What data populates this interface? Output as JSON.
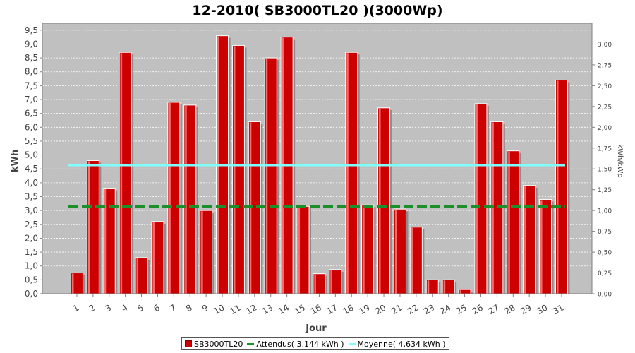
{
  "chart_data": {
    "type": "bar",
    "title": "12-2010( SB3000TL20 )(3000Wp)",
    "xlabel": "Jour",
    "ylabel": "kWh",
    "y2label": "kWh/kWp",
    "ylim": [
      0,
      9.75
    ],
    "y2lim": [
      0,
      3.25
    ],
    "yticks": [
      "0,0",
      "0,5",
      "1,0",
      "1,5",
      "2,0",
      "2,5",
      "3,0",
      "3,5",
      "4,0",
      "4,5",
      "5,0",
      "5,5",
      "6,0",
      "6,5",
      "7,0",
      "7,5",
      "8,0",
      "8,5",
      "9,0",
      "9,5"
    ],
    "y2ticks": [
      "0,00",
      "0,25",
      "0,50",
      "0,75",
      "1,00",
      "1,25",
      "1,50",
      "1,75",
      "2,00",
      "2,25",
      "2,50",
      "2,75",
      "3,00"
    ],
    "grid": true,
    "categories": [
      "1",
      "2",
      "3",
      "4",
      "5",
      "6",
      "7",
      "8",
      "9",
      "10",
      "11",
      "12",
      "13",
      "14",
      "15",
      "16",
      "17",
      "18",
      "19",
      "20",
      "21",
      "22",
      "23",
      "24",
      "25",
      "26",
      "27",
      "28",
      "29",
      "30",
      "31"
    ],
    "series": [
      {
        "name": "SB3000TL20",
        "color": "#cc0000",
        "values": [
          0.75,
          4.8,
          3.8,
          8.7,
          1.3,
          2.6,
          6.9,
          6.8,
          3.0,
          9.3,
          8.95,
          6.2,
          8.5,
          9.25,
          3.15,
          0.72,
          0.87,
          8.7,
          3.2,
          6.7,
          3.05,
          2.4,
          0.5,
          0.5,
          0.15,
          6.85,
          6.2,
          5.15,
          3.9,
          3.4,
          7.7
        ]
      }
    ],
    "lines": [
      {
        "name": "Attendus( 3,144 kWh )",
        "value": 3.144,
        "color": "#1a8f2a",
        "dashed": true
      },
      {
        "name": "Moyenne( 4,634 kWh )",
        "value": 4.634,
        "color": "#7fffff",
        "dashed": false
      }
    ],
    "legend_position": "bottom"
  }
}
